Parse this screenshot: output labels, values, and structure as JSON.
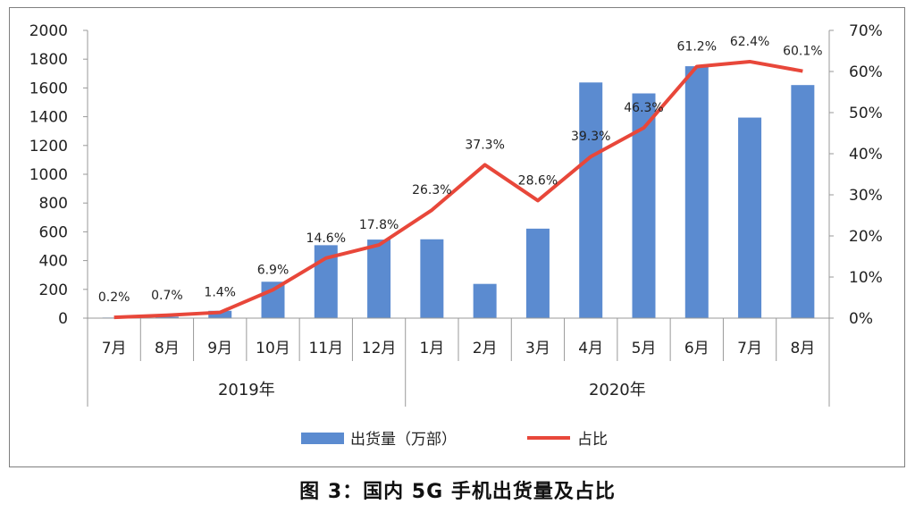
{
  "caption": "图 3：国内 5G 手机出货量及占比",
  "chart_data": {
    "type": "bar+line",
    "categories": [
      "7月",
      "8月",
      "9月",
      "10月",
      "11月",
      "12月",
      "1月",
      "2月",
      "3月",
      "4月",
      "5月",
      "6月",
      "7月",
      "8月"
    ],
    "groups": [
      {
        "label": "2019年",
        "span": 6
      },
      {
        "label": "2020年",
        "span": 8
      }
    ],
    "series": [
      {
        "name": "出货量（万部）",
        "type": "bar",
        "axis": "left",
        "color": "#5b8bd0",
        "values": [
          4,
          10,
          51,
          253,
          507,
          546,
          548,
          238,
          622,
          1638,
          1562,
          1751,
          1394,
          1620
        ]
      },
      {
        "name": "占比",
        "type": "line",
        "axis": "right",
        "color": "#e8473a",
        "values": [
          0.2,
          0.7,
          1.4,
          6.9,
          14.6,
          17.8,
          26.3,
          37.3,
          28.6,
          39.3,
          46.3,
          61.2,
          62.4,
          60.1
        ],
        "labels": [
          "0.2%",
          "0.7%",
          "1.4%",
          "6.9%",
          "14.6%",
          "17.8%",
          "26.3%",
          "37.3%",
          "28.6%",
          "39.3%",
          "46.3%",
          "61.2%",
          "62.4%",
          "60.1%"
        ]
      }
    ],
    "y_left": {
      "min": 0,
      "max": 2000,
      "ticks": [
        "0",
        "200",
        "400",
        "600",
        "800",
        "1000",
        "1200",
        "1400",
        "1600",
        "1800",
        "2000"
      ]
    },
    "y_right": {
      "min": 0,
      "max": 70,
      "ticks": [
        "0%",
        "10%",
        "20%",
        "30%",
        "40%",
        "50%",
        "60%",
        "70%"
      ]
    },
    "grid": false,
    "legend_position": "bottom"
  }
}
